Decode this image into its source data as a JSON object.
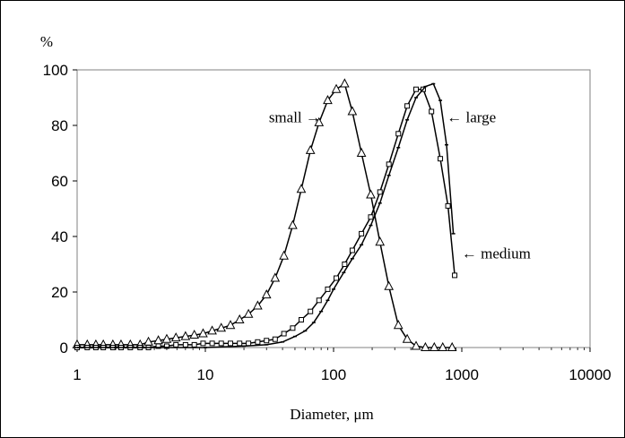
{
  "chart_data": {
    "type": "line",
    "title": "",
    "xlabel": "Diameter, μm",
    "ylabel": "%",
    "xscale": "log",
    "xlim": [
      1,
      10000
    ],
    "ylim": [
      0,
      100
    ],
    "x_ticks": [
      "1",
      "10",
      "100",
      "1000",
      "10000"
    ],
    "y_ticks": [
      "0",
      "20",
      "40",
      "60",
      "80",
      "100"
    ],
    "grid": false,
    "legend": "none",
    "series": [
      {
        "name": "small",
        "marker": "triangle",
        "x": [
          1,
          1.2,
          1.4,
          1.6,
          1.9,
          2.2,
          2.6,
          3.1,
          3.6,
          4.3,
          5.0,
          5.9,
          7.0,
          8.2,
          9.6,
          11.3,
          13.3,
          15.7,
          18.5,
          21.7,
          25.6,
          30,
          35,
          41,
          48,
          56,
          66,
          77,
          90,
          105,
          122,
          140,
          165,
          195,
          230,
          270,
          320,
          375,
          440,
          520,
          610,
          710,
          840
        ],
        "y": [
          1,
          1,
          1,
          1,
          1,
          1,
          1,
          1,
          2,
          2.5,
          3,
          3.5,
          4,
          4.5,
          5,
          6,
          7,
          8,
          10,
          12,
          15,
          19,
          25,
          33,
          44,
          57,
          71,
          81,
          89,
          93,
          95,
          85,
          70,
          55,
          38,
          22,
          8,
          3,
          0.5,
          0,
          0,
          0,
          0
        ]
      },
      {
        "name": "medium",
        "marker": "square",
        "x": [
          1,
          1.2,
          1.4,
          1.6,
          1.9,
          2.2,
          2.6,
          3.1,
          3.6,
          4.3,
          5.0,
          5.9,
          7.0,
          8.2,
          9.6,
          11.3,
          13.3,
          15.7,
          18.5,
          21.7,
          25.6,
          30,
          35,
          41,
          48,
          56,
          66,
          77,
          90,
          105,
          122,
          140,
          165,
          195,
          230,
          270,
          320,
          375,
          440,
          500,
          580,
          680,
          780,
          880
        ],
        "y": [
          0,
          0,
          0,
          0,
          0,
          0,
          0,
          0,
          0,
          0.5,
          0.5,
          1,
          1,
          1,
          1.5,
          1.5,
          1.5,
          1.5,
          1.5,
          1.5,
          2,
          2.5,
          3,
          5,
          7,
          10,
          13,
          17,
          21,
          25,
          30,
          35,
          41,
          47,
          56,
          66,
          77,
          87,
          93,
          93,
          85,
          68,
          51,
          26
        ]
      },
      {
        "name": "large",
        "marker": "dash",
        "x": [
          1,
          2,
          5,
          10,
          20,
          30,
          40,
          50,
          60,
          70,
          80,
          90,
          100,
          120,
          140,
          165,
          195,
          230,
          270,
          320,
          375,
          440,
          520,
          600,
          680,
          760,
          860
        ],
        "y": [
          0,
          0,
          0,
          0,
          0.5,
          1,
          2,
          4,
          6,
          9,
          13,
          17,
          21,
          27,
          32,
          37,
          44,
          52,
          62,
          72,
          82,
          90,
          94,
          95,
          89,
          73,
          41
        ]
      }
    ],
    "annotations": [
      {
        "text": "small →",
        "x": 85,
        "y": 83
      },
      {
        "text": "← large",
        "x": 650,
        "y": 83
      },
      {
        "text": "← medium",
        "x": 850,
        "y": 34
      }
    ]
  }
}
